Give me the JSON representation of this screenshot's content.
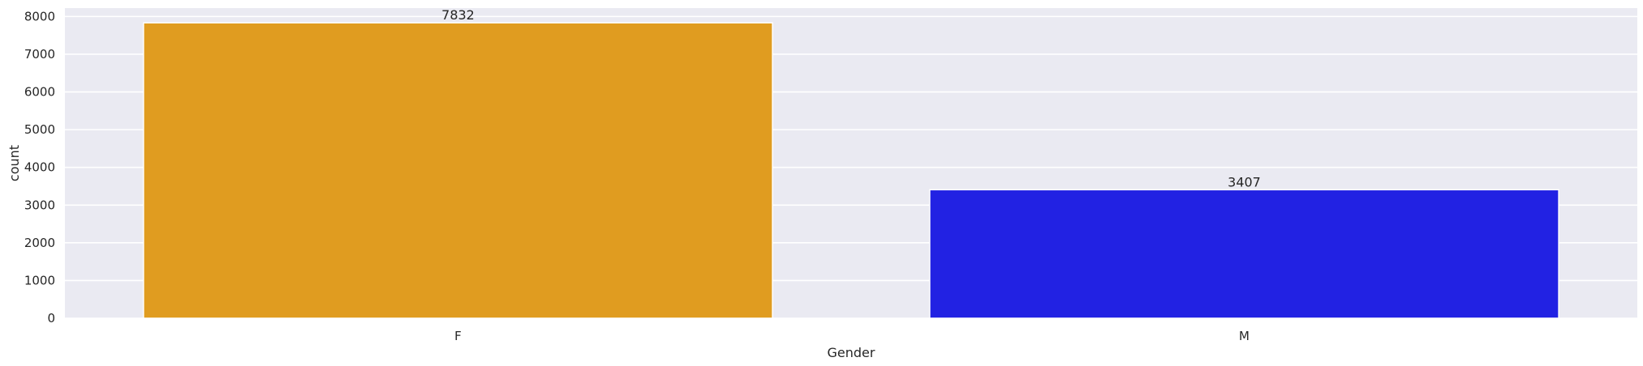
{
  "chart_data": {
    "type": "bar",
    "title": "",
    "xlabel": "Gender",
    "ylabel": "count",
    "categories": [
      "F",
      "M"
    ],
    "values": [
      7832,
      3407
    ],
    "colors": [
      "#e09c20",
      "#2222e3"
    ],
    "data_labels": [
      "7832",
      "3407"
    ],
    "yticks": [
      0,
      1000,
      2000,
      3000,
      4000,
      5000,
      6000,
      7000,
      8000
    ],
    "ylim": [
      0,
      8223
    ],
    "grid": true,
    "background_color": "#eaeaf2",
    "grid_color": "#ffffff"
  }
}
